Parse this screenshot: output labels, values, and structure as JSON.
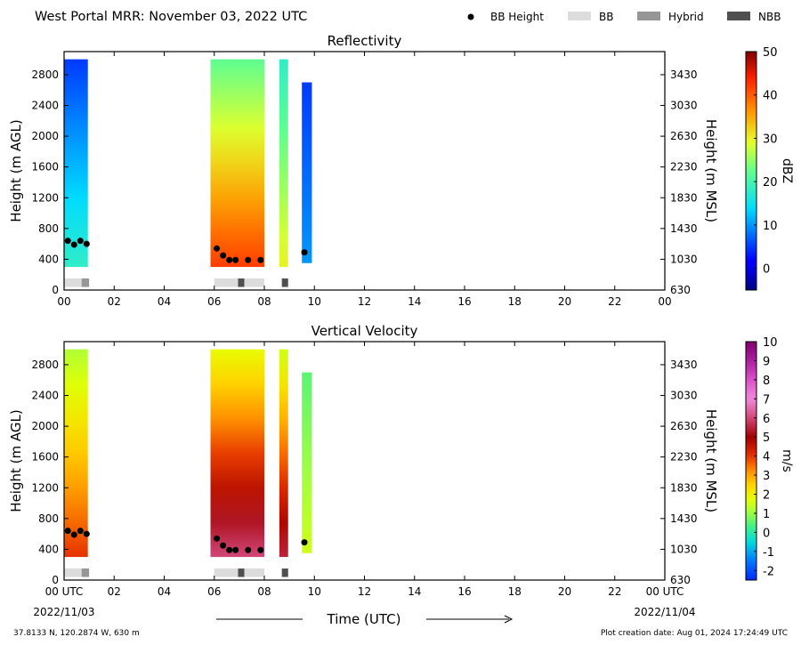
{
  "header": {
    "title": "West Portal MRR:  November 03, 2022 UTC",
    "legend": [
      {
        "label": "BB Height",
        "kind": "dot",
        "color": "#000000"
      },
      {
        "label": "BB",
        "kind": "box",
        "color": "#dcdcdc"
      },
      {
        "label": "Hybrid",
        "kind": "box",
        "color": "#969696"
      },
      {
        "label": "NBB",
        "kind": "box",
        "color": "#505050"
      }
    ]
  },
  "footer": {
    "location": "37.8133 N, 120.2874 W, 630 m",
    "creation": "Plot creation date: Aug 01, 2024 17:24:49 UTC",
    "xlabel": "Time (UTC)",
    "date_start": "2022/11/03",
    "date_end": "2022/11/04"
  },
  "chart_data": [
    {
      "type": "heatmap",
      "title": "Reflectivity",
      "ylabel": "Height (m AGL)",
      "y2label": "Height (m MSL)",
      "colorbar_label": "dBZ",
      "colormap": "jet",
      "clim": [
        -5,
        50
      ],
      "colorbar_ticks": [
        "0",
        "10",
        "20",
        "30",
        "40",
        "50"
      ],
      "colorbar_tick_values": [
        0,
        10,
        20,
        30,
        40,
        50
      ],
      "xlim": [
        0,
        24
      ],
      "ylim": [
        0,
        3100
      ],
      "xticks": [
        "00",
        "02",
        "04",
        "06",
        "08",
        "10",
        "12",
        "14",
        "16",
        "18",
        "20",
        "22",
        "00"
      ],
      "yticks": [
        "0",
        "400",
        "800",
        "1200",
        "1600",
        "2000",
        "2400",
        "2800"
      ],
      "y2ticks": [
        "630",
        "1030",
        "1430",
        "1830",
        "2230",
        "2630",
        "3030",
        "3430"
      ],
      "echo_segments": [
        {
          "t0": 0.0,
          "t1": 0.95,
          "top": 3000,
          "base": 300,
          "value_low": 18,
          "value_high": 5
        },
        {
          "t0": 5.85,
          "t1": 8.0,
          "top": 3000,
          "base": 300,
          "value_low": 42,
          "value_high": 22
        },
        {
          "t0": 8.6,
          "t1": 8.95,
          "top": 3000,
          "base": 300,
          "value_low": 30,
          "value_high": 18
        },
        {
          "t0": 9.5,
          "t1": 9.9,
          "top": 2700,
          "base": 350,
          "value_low": 10,
          "value_high": 5
        }
      ],
      "bb_height": [
        {
          "t": 0.15,
          "h": 640
        },
        {
          "t": 0.4,
          "h": 590
        },
        {
          "t": 0.65,
          "h": 640
        },
        {
          "t": 0.9,
          "h": 600
        },
        {
          "t": 6.1,
          "h": 540
        },
        {
          "t": 6.35,
          "h": 450
        },
        {
          "t": 6.6,
          "h": 390
        },
        {
          "t": 6.85,
          "h": 390
        },
        {
          "t": 7.35,
          "h": 390
        },
        {
          "t": 7.85,
          "h": 390
        },
        {
          "t": 9.6,
          "h": 490
        }
      ],
      "bb_type": [
        {
          "t0": 0.0,
          "t1": 0.7,
          "type": "BB"
        },
        {
          "t0": 0.7,
          "t1": 1.0,
          "type": "Hybrid"
        },
        {
          "t0": 6.0,
          "t1": 6.95,
          "type": "BB"
        },
        {
          "t0": 6.95,
          "t1": 7.2,
          "type": "NBB"
        },
        {
          "t0": 7.2,
          "t1": 8.0,
          "type": "BB"
        },
        {
          "t0": 8.7,
          "t1": 8.95,
          "type": "NBB"
        }
      ]
    },
    {
      "type": "heatmap",
      "title": "Vertical Velocity",
      "ylabel": "Height (m AGL)",
      "y2label": "Height (m MSL)",
      "colorbar_label": "m/s",
      "colormap": "velocity",
      "clim": [
        -2.5,
        10
      ],
      "colorbar_ticks": [
        "-2",
        "-1",
        "0",
        "1",
        "2",
        "3",
        "4",
        "5",
        "6",
        "7",
        "8",
        "9",
        "10"
      ],
      "colorbar_tick_values": [
        -2,
        -1,
        0,
        1,
        2,
        3,
        4,
        5,
        6,
        7,
        8,
        9,
        10
      ],
      "xlim": [
        0,
        24
      ],
      "ylim": [
        0,
        3100
      ],
      "xticks": [
        "00 UTC",
        "02",
        "04",
        "06",
        "08",
        "10",
        "12",
        "14",
        "16",
        "18",
        "20",
        "22",
        "00 UTC"
      ],
      "yticks": [
        "0",
        "400",
        "800",
        "1200",
        "1600",
        "2000",
        "2400",
        "2800"
      ],
      "y2ticks": [
        "630",
        "1030",
        "1430",
        "1830",
        "2230",
        "2630",
        "3030",
        "3430"
      ],
      "echo_segments": [
        {
          "t0": 0.0,
          "t1": 0.95,
          "top": 3000,
          "base": 300,
          "value_low": 4,
          "value_high": 1.2
        },
        {
          "t0": 5.85,
          "t1": 8.0,
          "top": 3000,
          "base": 300,
          "value_low": 6,
          "value_high": 1.8
        },
        {
          "t0": 8.6,
          "t1": 8.95,
          "top": 3000,
          "base": 300,
          "value_low": 5.5,
          "value_high": 1.5
        },
        {
          "t0": 9.5,
          "t1": 9.9,
          "top": 2700,
          "base": 350,
          "value_low": 1.5,
          "value_high": 0.5
        }
      ],
      "bb_height": [
        {
          "t": 0.15,
          "h": 640
        },
        {
          "t": 0.4,
          "h": 590
        },
        {
          "t": 0.65,
          "h": 640
        },
        {
          "t": 0.9,
          "h": 600
        },
        {
          "t": 6.1,
          "h": 540
        },
        {
          "t": 6.35,
          "h": 450
        },
        {
          "t": 6.6,
          "h": 390
        },
        {
          "t": 6.85,
          "h": 390
        },
        {
          "t": 7.35,
          "h": 390
        },
        {
          "t": 7.85,
          "h": 390
        },
        {
          "t": 9.6,
          "h": 490
        }
      ],
      "bb_type": [
        {
          "t0": 0.0,
          "t1": 0.7,
          "type": "BB"
        },
        {
          "t0": 0.7,
          "t1": 1.0,
          "type": "Hybrid"
        },
        {
          "t0": 6.0,
          "t1": 6.95,
          "type": "BB"
        },
        {
          "t0": 6.95,
          "t1": 7.2,
          "type": "NBB"
        },
        {
          "t0": 7.2,
          "t1": 8.0,
          "type": "BB"
        },
        {
          "t0": 8.7,
          "t1": 8.95,
          "type": "NBB"
        }
      ]
    }
  ]
}
